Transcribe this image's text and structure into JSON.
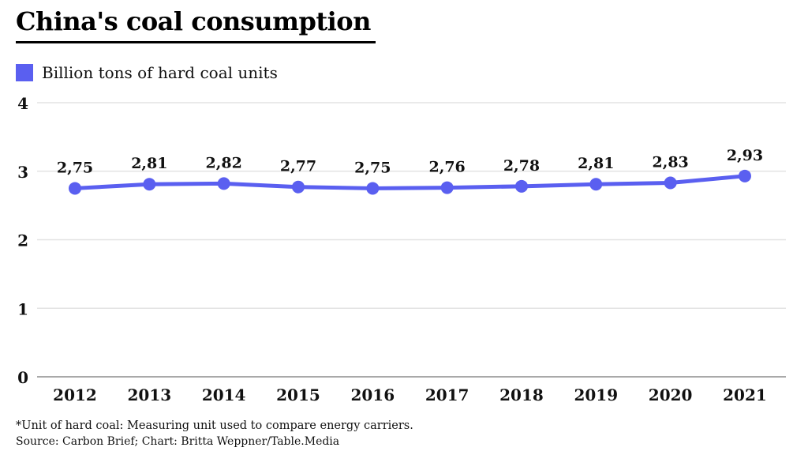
{
  "header": {
    "title": "China's coal consumption"
  },
  "legend": {
    "label": "Billion tons of hard coal units",
    "swatch_color": "#5a5ff0"
  },
  "footer": {
    "footnote": "*Unit of hard coal: Measuring unit used to compare energy carriers.",
    "source": "Source: Carbon Brief; Chart: Britta Weppner/Table.Media"
  },
  "chart_data": {
    "type": "line",
    "title": "China's coal consumption",
    "series_label": "Billion tons of hard coal units",
    "categories": [
      "2012",
      "2013",
      "2014",
      "2015",
      "2016",
      "2017",
      "2018",
      "2019",
      "2020",
      "2021"
    ],
    "values": [
      2.75,
      2.81,
      2.82,
      2.77,
      2.75,
      2.76,
      2.78,
      2.81,
      2.83,
      2.93
    ],
    "point_labels": [
      "2,75",
      "2,81",
      "2,82",
      "2,77",
      "2,75",
      "2,76",
      "2,78",
      "2,81",
      "2,83",
      "2,93"
    ],
    "yticks": [
      0,
      1,
      2,
      3,
      4
    ],
    "ylim": [
      0,
      4
    ],
    "xlabel": "",
    "ylabel": "",
    "grid": "horizontal",
    "legend_position": "top-left",
    "line_color": "#5a5ff0",
    "grid_color": "#e3e3e3",
    "axis_color": "#a9a9a9",
    "text_color": "#111111"
  }
}
